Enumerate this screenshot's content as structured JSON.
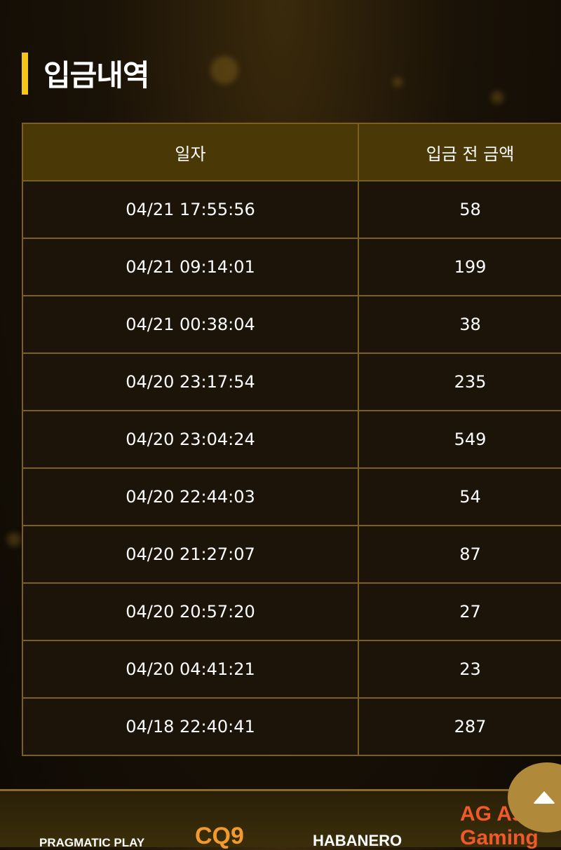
{
  "page": {
    "title": "입금내역"
  },
  "table": {
    "headers": [
      "일자",
      "입금 전 금액"
    ],
    "rows": [
      {
        "date": "04/21 17:55:56",
        "amount": "58"
      },
      {
        "date": "04/21 09:14:01",
        "amount": "199"
      },
      {
        "date": "04/21 00:38:04",
        "amount": "38"
      },
      {
        "date": "04/20 23:17:54",
        "amount": "235"
      },
      {
        "date": "04/20 23:04:24",
        "amount": "549"
      },
      {
        "date": "04/20 22:44:03",
        "amount": "54"
      },
      {
        "date": "04/20 21:27:07",
        "amount": "87"
      },
      {
        "date": "04/20 20:57:20",
        "amount": "27"
      },
      {
        "date": "04/20 04:41:21",
        "amount": "23"
      },
      {
        "date": "04/18 22:40:41",
        "amount": "287"
      }
    ]
  },
  "footer": {
    "logos": [
      "PRAGMATIC PLAY",
      "CQ9",
      "HABANERO",
      "AG Asia Gaming"
    ]
  },
  "scroll_top": {
    "icon": "triangle-up-icon"
  },
  "colors": {
    "accent": "#f5c518",
    "header_bg": "#4a3806",
    "border": "#7a5f20",
    "button": "#b08a3a"
  }
}
